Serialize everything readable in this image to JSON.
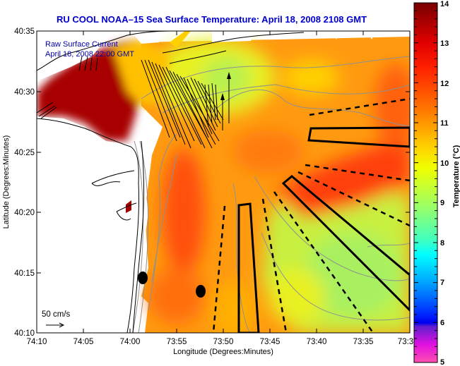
{
  "title": "RU COOL  NOAA–15  Sea Surface Temperature:  April 18, 2008 2108 GMT",
  "overlay": {
    "line1": "Raw Surface Current",
    "line2": "April 18, 2008 22:00 GMT",
    "scale_label": "50 cm/s"
  },
  "axes": {
    "xlabel": "Longitude (Degrees:Minutes)",
    "ylabel": "Latitude (Degrees:Minutes)",
    "xticks": [
      "74:10",
      "74:05",
      "74:00",
      "73:55",
      "73:50",
      "73:45",
      "73:40",
      "73:35",
      "73:3"
    ],
    "yticks": [
      "40:35",
      "40:30",
      "40:25",
      "40:20",
      "40:15",
      "40:10"
    ]
  },
  "colorbar": {
    "label": "Temperature (°C)",
    "ticks": [
      "14",
      "13",
      "12",
      "11",
      "10",
      "9",
      "8",
      "7",
      "6",
      "5"
    ],
    "stops": [
      "#7a0000",
      "#ff0000",
      "#ff7f00",
      "#ffff00",
      "#80ff80",
      "#00ffff",
      "#0080ff",
      "#0000ff",
      "#ff00ff",
      "#ff60c0"
    ]
  },
  "colors": {
    "title": "#0000cc",
    "land": "#ffffff",
    "warm": "#ff4000",
    "mid": "#ffb000",
    "cool": "#c8ff40"
  }
}
